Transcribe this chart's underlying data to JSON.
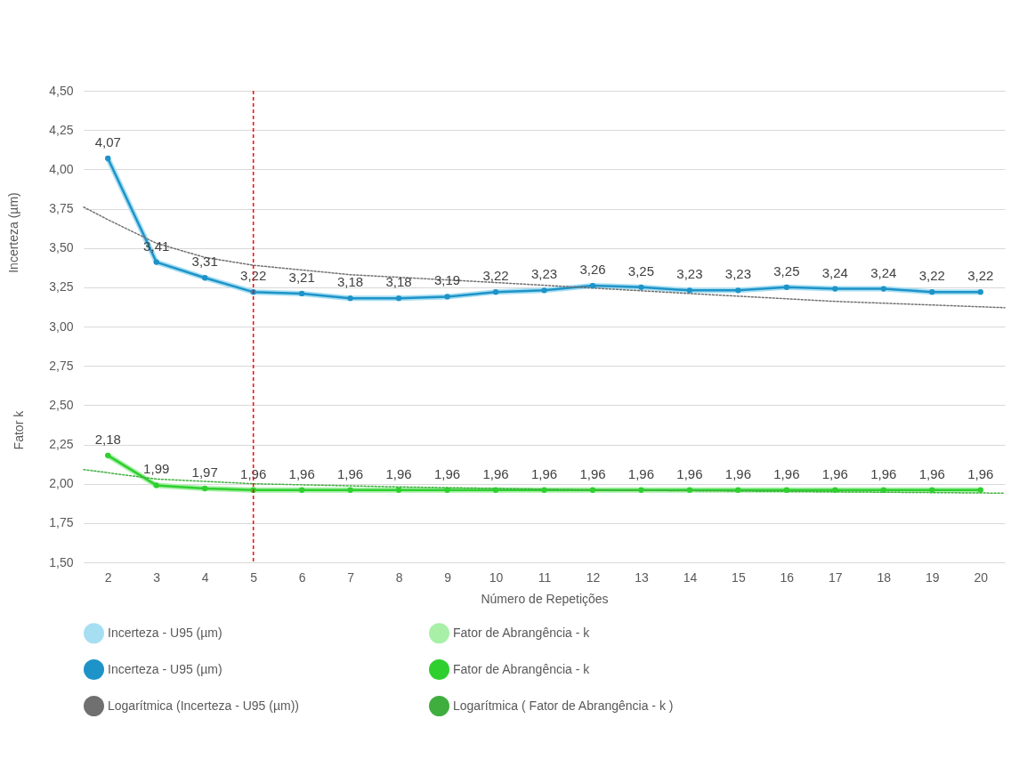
{
  "chart_data": {
    "type": "line",
    "xlabel": "Número de Repetições",
    "ylabel": "Incerteza (µm)",
    "annotations": [
      "Fator k"
    ],
    "xlim": [
      1.5,
      20.5
    ],
    "xticks": [
      2,
      3,
      4,
      5,
      6,
      7,
      8,
      9,
      10,
      11,
      12,
      13,
      14,
      15,
      16,
      17,
      18,
      19,
      20
    ],
    "ylim": [
      1.5,
      4.5
    ],
    "yticks": [
      {
        "value": 1.5,
        "label": "1,50"
      },
      {
        "value": 1.75,
        "label": "1,75"
      },
      {
        "value": 2,
        "label": "2,00"
      },
      {
        "value": 2.25,
        "label": "2,25"
      },
      {
        "value": 2.5,
        "label": "2,50"
      },
      {
        "value": 2.75,
        "label": "2,75"
      },
      {
        "value": 3,
        "label": "3,00"
      },
      {
        "value": 3.25,
        "label": "3,25"
      },
      {
        "value": 3.5,
        "label": "3,50"
      },
      {
        "value": 3.75,
        "label": "3,75"
      },
      {
        "value": 4,
        "label": "4,00"
      },
      {
        "value": 4.25,
        "label": "4,25"
      },
      {
        "value": 4.5,
        "label": "4,50"
      }
    ],
    "x": [
      2,
      3,
      4,
      5,
      6,
      7,
      8,
      9,
      10,
      11,
      12,
      13,
      14,
      15,
      16,
      17,
      18,
      19,
      20
    ],
    "grid": "y",
    "legend": "bottom",
    "series": [
      {
        "name": "Incerteza - U95 (µm)",
        "color": "#a6def2",
        "values": [
          4.07,
          3.41,
          3.31,
          3.22,
          3.21,
          3.18,
          3.18,
          3.19,
          3.22,
          3.23,
          3.26,
          3.25,
          3.23,
          3.23,
          3.25,
          3.24,
          3.24,
          3.22,
          3.22
        ]
      },
      {
        "name": "Fator de Abrangência - k",
        "color": "#a8f0a8",
        "values": [
          2.18,
          1.99,
          1.97,
          1.96,
          1.96,
          1.96,
          1.96,
          1.96,
          1.96,
          1.96,
          1.96,
          1.96,
          1.96,
          1.96,
          1.96,
          1.96,
          1.96,
          1.96,
          1.96
        ]
      },
      {
        "name": "Incerteza - U95 (µm)",
        "color": "#1e93c8",
        "marker": "circle",
        "values": [
          4.07,
          3.41,
          3.31,
          3.22,
          3.21,
          3.18,
          3.18,
          3.19,
          3.22,
          3.23,
          3.26,
          3.25,
          3.23,
          3.23,
          3.25,
          3.24,
          3.24,
          3.22,
          3.22
        ],
        "value_labels": [
          "4,07",
          "3,41",
          "3,31",
          "3,22",
          "3,21",
          "3,18",
          "3,18",
          "3,19",
          "3,22",
          "3,23",
          "3,26",
          "3,25",
          "3,23",
          "3,23",
          "3,25",
          "3,24",
          "3,24",
          "3,22",
          "3,22"
        ]
      },
      {
        "name": "Fator de Abrangência - k",
        "color": "#2fcf2f",
        "marker": "circle",
        "values": [
          2.18,
          1.99,
          1.97,
          1.96,
          1.96,
          1.96,
          1.96,
          1.96,
          1.96,
          1.96,
          1.96,
          1.96,
          1.96,
          1.96,
          1.96,
          1.96,
          1.96,
          1.96,
          1.96
        ],
        "value_labels": [
          "2,18",
          "1,99",
          "1,97",
          "1,96",
          "1,96",
          "1,96",
          "1,96",
          "1,96",
          "1,96",
          "1,96",
          "1,96",
          "1,96",
          "1,96",
          "1,96",
          "1,96",
          "1,96",
          "1,96",
          "1,96",
          "1,96"
        ]
      },
      {
        "name": "Logarítmica (Incerteza - U95 (µm))",
        "color": "#707070",
        "line_style": "dotted",
        "x": [
          1.5,
          2,
          3,
          4,
          5,
          7,
          10,
          14,
          17,
          20.5
        ],
        "values": [
          3.76,
          3.68,
          3.53,
          3.44,
          3.39,
          3.33,
          3.28,
          3.21,
          3.16,
          3.12
        ]
      },
      {
        "name": "Logarítmica ( Fator de Abrangência - k )",
        "color": "#3fae3f",
        "line_style": "dotted",
        "x": [
          1.5,
          2,
          3,
          5,
          8,
          12,
          20.5
        ],
        "values": [
          2.09,
          2.07,
          2.03,
          2.0,
          1.98,
          1.96,
          1.94
        ]
      }
    ],
    "ref_lines": [
      {
        "axis": "x",
        "value": 5,
        "label": null,
        "color": "#ff0000",
        "line_style": "dashed"
      }
    ]
  }
}
